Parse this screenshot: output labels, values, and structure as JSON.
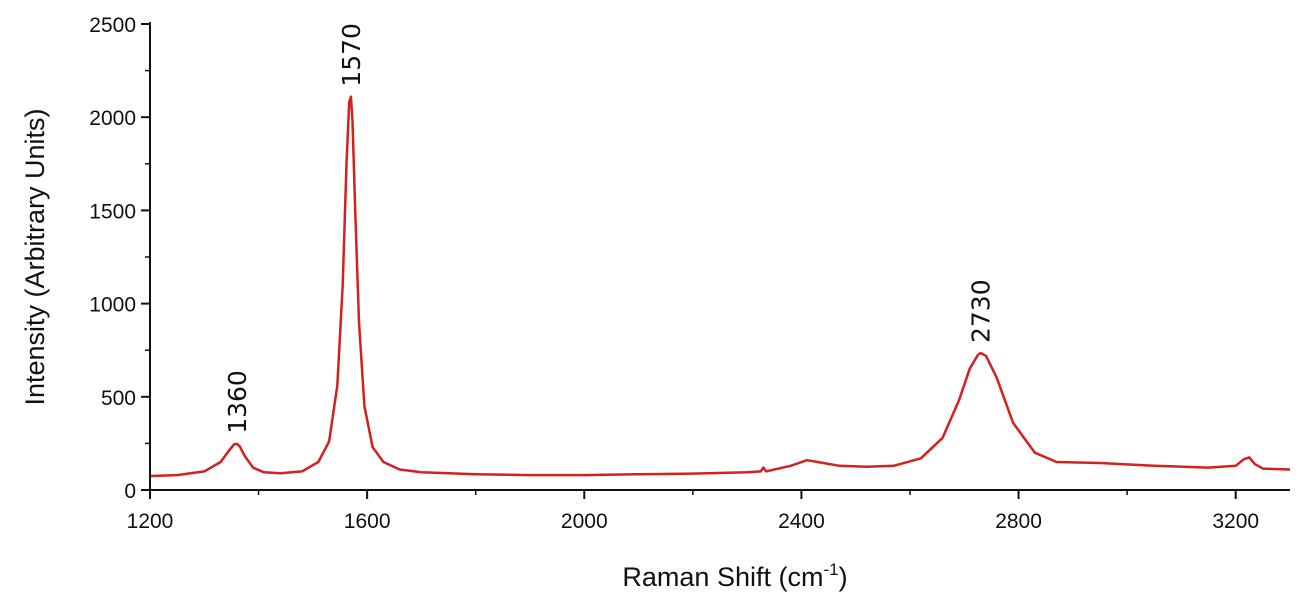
{
  "chart_data": {
    "type": "line",
    "title": "",
    "xlabel": "Raman Shift (cm",
    "xlabel_sup": "-1",
    "xlabel_close": ")",
    "ylabel": "Intensity (Arbitrary Units)",
    "xlim": [
      1200,
      3300
    ],
    "ylim": [
      0,
      2500
    ],
    "xticks": [
      "1200",
      "1600",
      "2000",
      "2400",
      "2800",
      "3200"
    ],
    "yticks": [
      "0",
      "500",
      "1000",
      "1500",
      "2000",
      "2500"
    ],
    "grid": false,
    "series": [
      {
        "color": "#d42020",
        "x": [
          1200,
          1250,
          1300,
          1330,
          1345,
          1355,
          1360,
          1365,
          1375,
          1390,
          1410,
          1440,
          1480,
          1510,
          1530,
          1545,
          1555,
          1562,
          1567,
          1570,
          1573,
          1578,
          1585,
          1595,
          1610,
          1630,
          1660,
          1700,
          1800,
          1900,
          2000,
          2100,
          2200,
          2300,
          2325,
          2330,
          2335,
          2380,
          2410,
          2430,
          2470,
          2520,
          2570,
          2620,
          2660,
          2690,
          2710,
          2725,
          2730,
          2740,
          2760,
          2790,
          2830,
          2870,
          2950,
          3050,
          3150,
          3200,
          3215,
          3225,
          3235,
          3250,
          3300
        ],
        "y": [
          75,
          80,
          100,
          150,
          210,
          245,
          248,
          235,
          180,
          120,
          95,
          90,
          100,
          150,
          260,
          560,
          1100,
          1750,
          2080,
          2110,
          1980,
          1500,
          900,
          450,
          230,
          150,
          110,
          95,
          85,
          80,
          80,
          85,
          88,
          95,
          100,
          120,
          100,
          130,
          160,
          150,
          130,
          125,
          130,
          170,
          280,
          480,
          650,
          725,
          735,
          720,
          600,
          360,
          200,
          150,
          145,
          130,
          120,
          130,
          165,
          175,
          140,
          115,
          110
        ]
      }
    ],
    "annotations": [
      {
        "text": "1360",
        "x": 1360,
        "y": 248
      },
      {
        "text": "1570",
        "x": 1570,
        "y": 2110
      },
      {
        "text": "2730",
        "x": 2730,
        "y": 735
      }
    ]
  }
}
